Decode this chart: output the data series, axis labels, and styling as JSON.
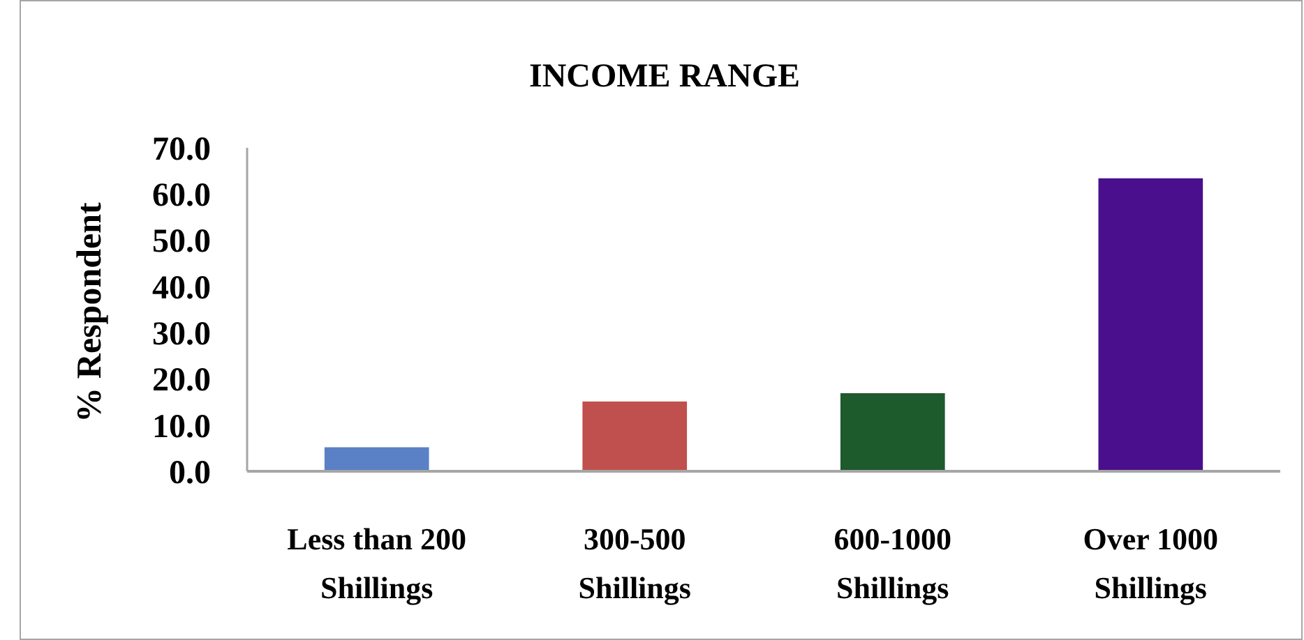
{
  "chart_data": {
    "type": "bar",
    "title": "INCOME RANGE",
    "ylabel": "% Respondent",
    "categories": [
      "Less than 200 Shillings",
      "300-500 Shillings",
      "600-1000 Shillings",
      "Over 1000 Shillings"
    ],
    "values": [
      5.2,
      15.1,
      16.9,
      63.4
    ],
    "colors": [
      "#5a80c6",
      "#c0504d",
      "#1d5a2c",
      "#4a0f8c"
    ],
    "ylim": [
      0,
      70
    ],
    "yticks": [
      {
        "value": 0,
        "label": "0.0"
      },
      {
        "value": 10,
        "label": "10.0"
      },
      {
        "value": 20,
        "label": "20.0"
      },
      {
        "value": 30,
        "label": "30.0"
      },
      {
        "value": 40,
        "label": "40.0"
      },
      {
        "value": 50,
        "label": "50.0"
      },
      {
        "value": 60,
        "label": "60.0"
      },
      {
        "value": 70,
        "label": "70.0"
      }
    ]
  }
}
